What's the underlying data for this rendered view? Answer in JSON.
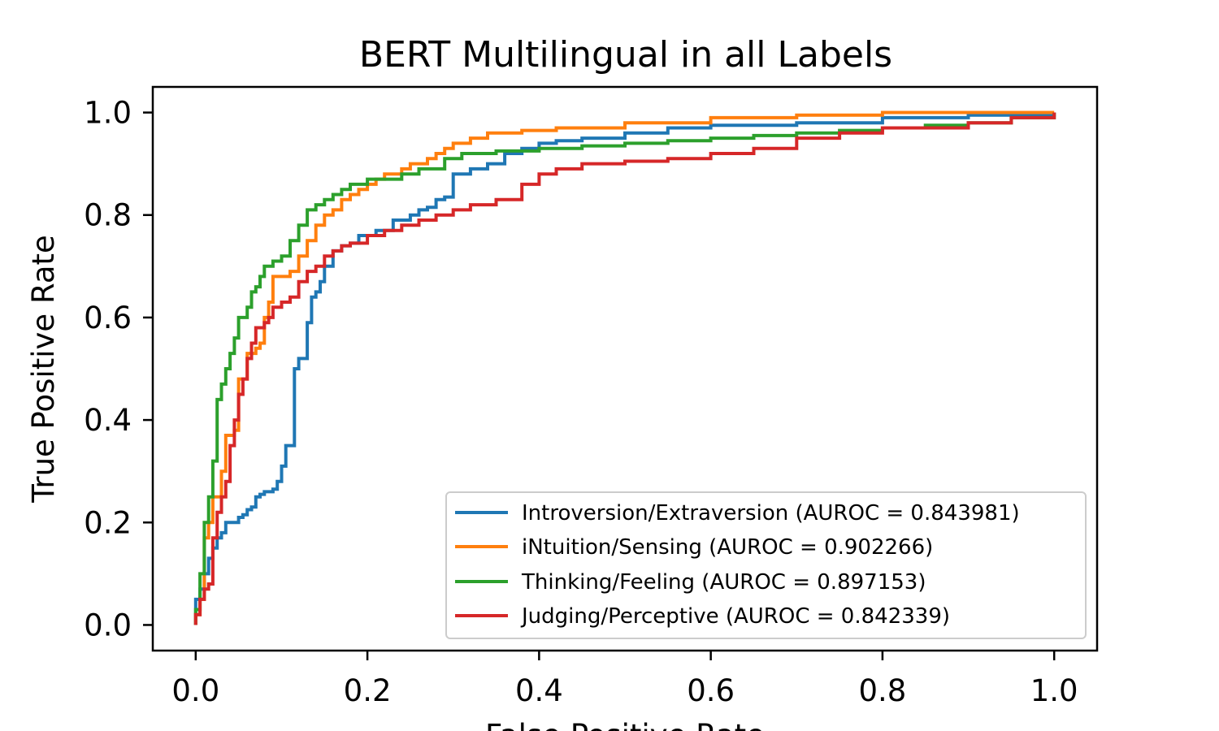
{
  "chart_data": {
    "type": "line",
    "title": "BERT Multilingual in all Labels",
    "xlabel": "False Positive Rate",
    "ylabel": "True Positive Rate",
    "xlim": [
      -0.05,
      1.05
    ],
    "ylim": [
      -0.05,
      1.05
    ],
    "xticks": [
      "0.0",
      "0.2",
      "0.4",
      "0.6",
      "0.8",
      "1.0"
    ],
    "yticks": [
      "0.0",
      "0.2",
      "0.4",
      "0.6",
      "0.8",
      "1.0"
    ],
    "grid": false,
    "legend_position": "lower right",
    "series": [
      {
        "name": "Introversion/Extraversion (AUROC = 0.843981)",
        "color": "#1f77b4",
        "points": [
          [
            0.0,
            0.0
          ],
          [
            0.0,
            0.05
          ],
          [
            0.005,
            0.07
          ],
          [
            0.01,
            0.1
          ],
          [
            0.015,
            0.13
          ],
          [
            0.02,
            0.15
          ],
          [
            0.025,
            0.17
          ],
          [
            0.03,
            0.18
          ],
          [
            0.035,
            0.2
          ],
          [
            0.04,
            0.2
          ],
          [
            0.05,
            0.21
          ],
          [
            0.055,
            0.215
          ],
          [
            0.06,
            0.225
          ],
          [
            0.065,
            0.23
          ],
          [
            0.07,
            0.25
          ],
          [
            0.075,
            0.255
          ],
          [
            0.08,
            0.26
          ],
          [
            0.09,
            0.265
          ],
          [
            0.095,
            0.28
          ],
          [
            0.1,
            0.29
          ],
          [
            0.1,
            0.31
          ],
          [
            0.105,
            0.32
          ],
          [
            0.105,
            0.35
          ],
          [
            0.11,
            0.35
          ],
          [
            0.115,
            0.36
          ],
          [
            0.115,
            0.5
          ],
          [
            0.12,
            0.52
          ],
          [
            0.13,
            0.53
          ],
          [
            0.13,
            0.59
          ],
          [
            0.135,
            0.64
          ],
          [
            0.14,
            0.65
          ],
          [
            0.145,
            0.67
          ],
          [
            0.15,
            0.7
          ],
          [
            0.16,
            0.73
          ],
          [
            0.17,
            0.74
          ],
          [
            0.18,
            0.745
          ],
          [
            0.19,
            0.76
          ],
          [
            0.2,
            0.76
          ],
          [
            0.21,
            0.77
          ],
          [
            0.22,
            0.77
          ],
          [
            0.23,
            0.79
          ],
          [
            0.25,
            0.8
          ],
          [
            0.26,
            0.81
          ],
          [
            0.27,
            0.815
          ],
          [
            0.28,
            0.83
          ],
          [
            0.29,
            0.835
          ],
          [
            0.3,
            0.85
          ],
          [
            0.3,
            0.88
          ],
          [
            0.32,
            0.89
          ],
          [
            0.34,
            0.9
          ],
          [
            0.36,
            0.92
          ],
          [
            0.38,
            0.93
          ],
          [
            0.4,
            0.94
          ],
          [
            0.42,
            0.945
          ],
          [
            0.45,
            0.95
          ],
          [
            0.5,
            0.96
          ],
          [
            0.55,
            0.97
          ],
          [
            0.6,
            0.975
          ],
          [
            0.7,
            0.98
          ],
          [
            0.8,
            0.99
          ],
          [
            0.9,
            0.995
          ],
          [
            1.0,
            1.0
          ]
        ]
      },
      {
        "name": "iNtuition/Sensing (AUROC = 0.902266)",
        "color": "#ff7f0e",
        "points": [
          [
            0.0,
            0.0
          ],
          [
            0.0,
            0.02
          ],
          [
            0.005,
            0.05
          ],
          [
            0.01,
            0.08
          ],
          [
            0.01,
            0.17
          ],
          [
            0.015,
            0.18
          ],
          [
            0.015,
            0.2
          ],
          [
            0.02,
            0.25
          ],
          [
            0.03,
            0.3
          ],
          [
            0.035,
            0.37
          ],
          [
            0.045,
            0.38
          ],
          [
            0.05,
            0.4
          ],
          [
            0.05,
            0.48
          ],
          [
            0.06,
            0.53
          ],
          [
            0.07,
            0.54
          ],
          [
            0.075,
            0.55
          ],
          [
            0.08,
            0.6
          ],
          [
            0.085,
            0.63
          ],
          [
            0.09,
            0.68
          ],
          [
            0.1,
            0.68
          ],
          [
            0.11,
            0.69
          ],
          [
            0.12,
            0.72
          ],
          [
            0.13,
            0.75
          ],
          [
            0.14,
            0.78
          ],
          [
            0.15,
            0.8
          ],
          [
            0.16,
            0.81
          ],
          [
            0.17,
            0.83
          ],
          [
            0.18,
            0.84
          ],
          [
            0.19,
            0.85
          ],
          [
            0.2,
            0.86
          ],
          [
            0.21,
            0.87
          ],
          [
            0.22,
            0.88
          ],
          [
            0.24,
            0.89
          ],
          [
            0.25,
            0.9
          ],
          [
            0.27,
            0.91
          ],
          [
            0.28,
            0.92
          ],
          [
            0.29,
            0.93
          ],
          [
            0.3,
            0.94
          ],
          [
            0.32,
            0.95
          ],
          [
            0.34,
            0.96
          ],
          [
            0.38,
            0.965
          ],
          [
            0.42,
            0.97
          ],
          [
            0.5,
            0.98
          ],
          [
            0.6,
            0.99
          ],
          [
            0.7,
            0.995
          ],
          [
            0.8,
            1.0
          ],
          [
            1.0,
            1.0
          ]
        ]
      },
      {
        "name": "Thinking/Feeling (AUROC = 0.897153)",
        "color": "#2ca02c",
        "points": [
          [
            0.0,
            0.0
          ],
          [
            0.0,
            0.03
          ],
          [
            0.005,
            0.1
          ],
          [
            0.01,
            0.12
          ],
          [
            0.01,
            0.2
          ],
          [
            0.015,
            0.25
          ],
          [
            0.02,
            0.32
          ],
          [
            0.025,
            0.38
          ],
          [
            0.025,
            0.44
          ],
          [
            0.03,
            0.47
          ],
          [
            0.035,
            0.5
          ],
          [
            0.04,
            0.53
          ],
          [
            0.045,
            0.56
          ],
          [
            0.05,
            0.6
          ],
          [
            0.06,
            0.62
          ],
          [
            0.065,
            0.65
          ],
          [
            0.07,
            0.66
          ],
          [
            0.075,
            0.68
          ],
          [
            0.08,
            0.7
          ],
          [
            0.09,
            0.71
          ],
          [
            0.1,
            0.72
          ],
          [
            0.11,
            0.75
          ],
          [
            0.12,
            0.78
          ],
          [
            0.13,
            0.81
          ],
          [
            0.14,
            0.82
          ],
          [
            0.15,
            0.83
          ],
          [
            0.16,
            0.84
          ],
          [
            0.17,
            0.85
          ],
          [
            0.18,
            0.86
          ],
          [
            0.2,
            0.87
          ],
          [
            0.22,
            0.87
          ],
          [
            0.24,
            0.88
          ],
          [
            0.26,
            0.89
          ],
          [
            0.28,
            0.89
          ],
          [
            0.29,
            0.91
          ],
          [
            0.31,
            0.92
          ],
          [
            0.35,
            0.925
          ],
          [
            0.4,
            0.93
          ],
          [
            0.45,
            0.935
          ],
          [
            0.5,
            0.94
          ],
          [
            0.55,
            0.945
          ],
          [
            0.6,
            0.95
          ],
          [
            0.65,
            0.955
          ],
          [
            0.7,
            0.96
          ],
          [
            0.75,
            0.965
          ],
          [
            0.8,
            0.97
          ],
          [
            0.85,
            0.975
          ],
          [
            0.9,
            0.98
          ],
          [
            0.95,
            0.99
          ],
          [
            1.0,
            1.0
          ]
        ]
      },
      {
        "name": "Judging/Perceptive (AUROC = 0.842339)",
        "color": "#d62728",
        "points": [
          [
            0.0,
            0.0
          ],
          [
            0.0,
            0.02
          ],
          [
            0.005,
            0.05
          ],
          [
            0.01,
            0.07
          ],
          [
            0.015,
            0.08
          ],
          [
            0.02,
            0.09
          ],
          [
            0.02,
            0.17
          ],
          [
            0.025,
            0.22
          ],
          [
            0.03,
            0.25
          ],
          [
            0.035,
            0.28
          ],
          [
            0.04,
            0.35
          ],
          [
            0.045,
            0.4
          ],
          [
            0.05,
            0.45
          ],
          [
            0.055,
            0.48
          ],
          [
            0.06,
            0.52
          ],
          [
            0.065,
            0.55
          ],
          [
            0.07,
            0.58
          ],
          [
            0.08,
            0.59
          ],
          [
            0.085,
            0.6
          ],
          [
            0.09,
            0.62
          ],
          [
            0.1,
            0.63
          ],
          [
            0.11,
            0.64
          ],
          [
            0.12,
            0.67
          ],
          [
            0.13,
            0.69
          ],
          [
            0.14,
            0.7
          ],
          [
            0.15,
            0.72
          ],
          [
            0.16,
            0.73
          ],
          [
            0.17,
            0.74
          ],
          [
            0.18,
            0.745
          ],
          [
            0.2,
            0.76
          ],
          [
            0.22,
            0.77
          ],
          [
            0.24,
            0.78
          ],
          [
            0.26,
            0.79
          ],
          [
            0.28,
            0.8
          ],
          [
            0.3,
            0.81
          ],
          [
            0.32,
            0.82
          ],
          [
            0.35,
            0.83
          ],
          [
            0.38,
            0.86
          ],
          [
            0.4,
            0.88
          ],
          [
            0.42,
            0.89
          ],
          [
            0.45,
            0.9
          ],
          [
            0.5,
            0.905
          ],
          [
            0.55,
            0.91
          ],
          [
            0.6,
            0.92
          ],
          [
            0.65,
            0.93
          ],
          [
            0.7,
            0.95
          ],
          [
            0.75,
            0.96
          ],
          [
            0.8,
            0.97
          ],
          [
            0.9,
            0.98
          ],
          [
            0.95,
            0.99
          ],
          [
            1.0,
            1.0
          ]
        ]
      }
    ]
  }
}
